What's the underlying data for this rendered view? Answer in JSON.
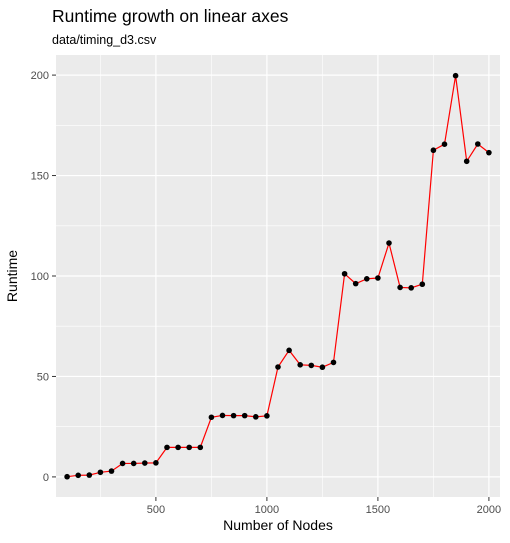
{
  "chart_data": {
    "type": "line",
    "title": "Runtime growth on linear axes",
    "subtitle": "data/timing_d3.csv",
    "xlabel": "Number of Nodes",
    "ylabel": "Runtime",
    "xlim": [
      50,
      2050
    ],
    "ylim": [
      -10,
      210
    ],
    "x_ticks": [
      500,
      1000,
      1500,
      2000
    ],
    "y_ticks": [
      0,
      50,
      100,
      150,
      200
    ],
    "grid": true,
    "legend": "none",
    "colors": {
      "line": "#ff0000",
      "point": "#000000",
      "panel_bg": "#ebebeb",
      "grid": "#ffffff"
    },
    "series": [
      {
        "x": [
          100,
          150,
          200,
          250,
          300,
          350,
          400,
          450,
          500,
          550,
          600,
          650,
          700,
          750,
          800,
          850,
          900,
          950,
          1000,
          1050,
          1100,
          1150,
          1200,
          1250,
          1300,
          1350,
          1400,
          1450,
          1500,
          1550,
          1600,
          1650,
          1700,
          1750,
          1800,
          1850,
          1900,
          1950,
          2000
        ],
        "y": [
          0.1,
          0.8,
          0.9,
          2.3,
          2.9,
          6.7,
          6.7,
          6.9,
          7.0,
          14.7,
          14.7,
          14.7,
          14.7,
          29.7,
          30.6,
          30.5,
          30.5,
          29.9,
          30.4,
          54.7,
          63.0,
          55.8,
          55.5,
          54.6,
          57.0,
          101.1,
          96.2,
          98.6,
          99.0,
          116.4,
          94.3,
          94.1,
          95.9,
          162.6,
          165.6,
          199.7,
          157.1,
          165.7,
          161.4
        ]
      }
    ]
  }
}
